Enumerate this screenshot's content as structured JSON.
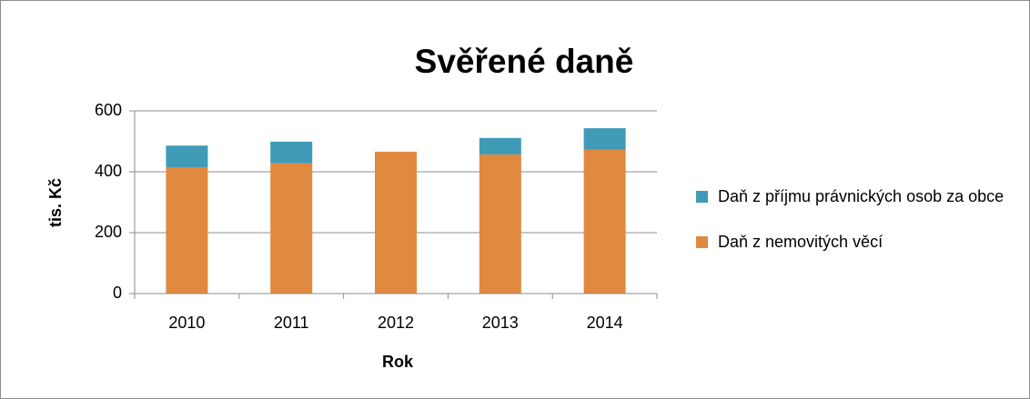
{
  "chart_data": {
    "type": "stacked_bar",
    "title": "Svěřené daně",
    "x_label": "Rok",
    "y_label": "tis. Kč",
    "categories": [
      "2010",
      "2011",
      "2012",
      "2013",
      "2014"
    ],
    "series": [
      {
        "name": "Daň z příjmu právnických osob za obce",
        "color": "#3f9bb6",
        "values": [
          71,
          71,
          0,
          54,
          71
        ]
      },
      {
        "name": "Daň z nemovitých věcí",
        "color": "#e0893f",
        "values": [
          415,
          428,
          466,
          457,
          472
        ]
      }
    ],
    "ylim": [
      0,
      600
    ],
    "yticks": [
      0,
      200,
      400,
      600
    ],
    "grid": true,
    "legend": "right"
  }
}
